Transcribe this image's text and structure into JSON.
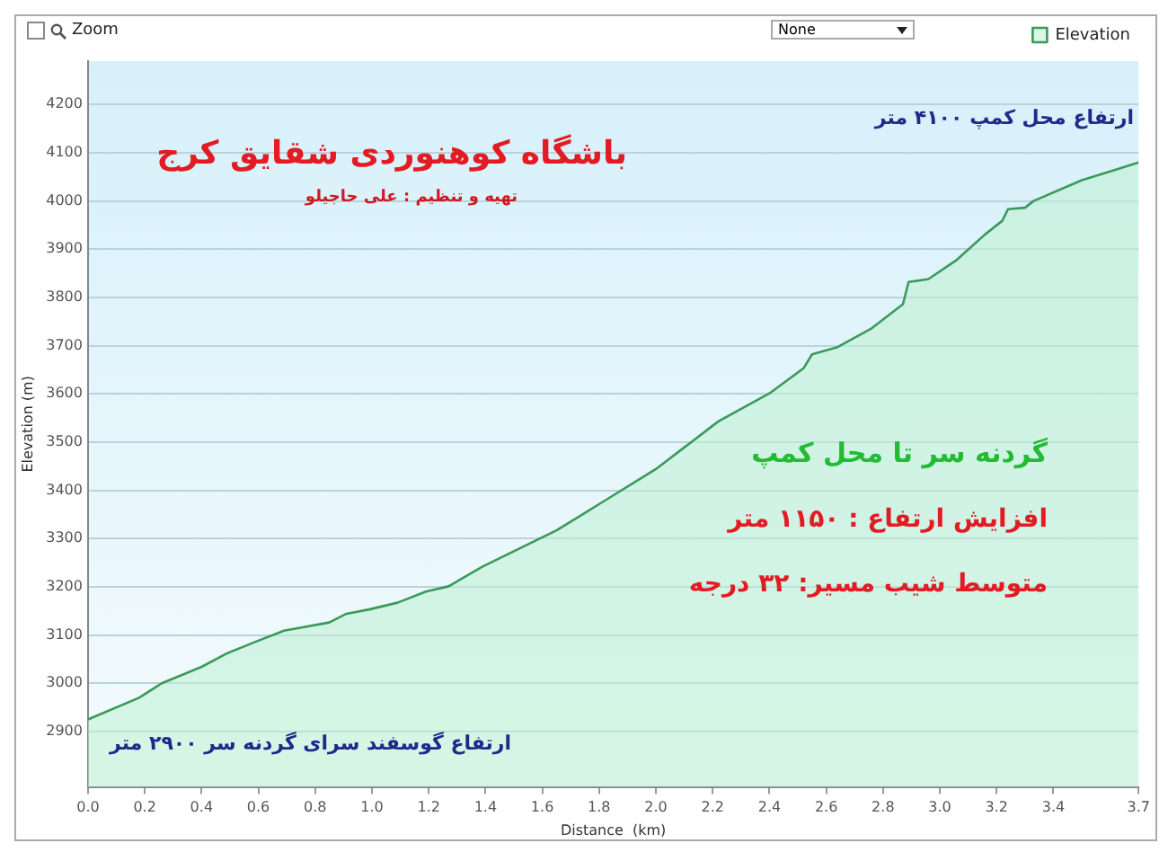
{
  "chart_data": {
    "type": "area",
    "title": "باشگاه کوهنوردی شقایق کرج",
    "subtitle": "تهیه و تنظیم : علی حاجیلو",
    "xlabel": "Distance  (km)",
    "ylabel": "Elevation (m)",
    "annotations": [
      "Zoom",
      "None",
      "ارتفاع محل کمپ ۴۱۰۰ متر",
      "گردنه سر تا محل کمپ",
      "افزایش ارتفاع :  ۱۱۵۰ متر",
      "متوسط شیب مسیر:  ۳۲ درجه",
      "ارتفاع گوسفند سرای گردنه سر ۲۹۰۰ متر"
    ],
    "x": [
      0,
      0.18,
      0.26,
      0.4,
      0.49,
      0.59,
      0.69,
      0.85,
      0.91,
      0.99,
      1.09,
      1.19,
      1.27,
      1.39,
      1.49,
      1.65,
      1.73,
      1.81,
      2.0,
      2.22,
      2.4,
      2.52,
      2.55,
      2.64,
      2.76,
      2.87,
      2.89,
      2.96,
      3.06,
      3.16,
      3.22,
      3.24,
      3.3,
      3.33,
      3.5,
      3.62,
      3.7
    ],
    "series": [
      {
        "name": "Elevation",
        "color": "#3a9a5a",
        "values": [
          2925,
          2970,
          3000,
          3034,
          3062,
          3086,
          3109,
          3126,
          3144,
          3153,
          3167,
          3190,
          3201,
          3242,
          3271,
          3317,
          3346,
          3375,
          3444,
          3543,
          3601,
          3653,
          3682,
          3697,
          3736,
          3786,
          3832,
          3838,
          3878,
          3931,
          3959,
          3983,
          3986,
          4000,
          4043,
          4065,
          4080
        ]
      }
    ],
    "xlim": [
      0,
      3.7
    ],
    "xticks": [
      {
        "value": 0,
        "label": "0.0"
      },
      0.2,
      0.4,
      0.6,
      0.8,
      {
        "value": 1,
        "label": "1.0"
      },
      1.2,
      1.4,
      1.6,
      1.8,
      {
        "value": 2,
        "label": "2.0"
      },
      2.2,
      2.4,
      2.6,
      2.8,
      {
        "value": 3,
        "label": "3.0"
      },
      3.2,
      3.4,
      3.7
    ],
    "ylim": [
      2785,
      4290
    ],
    "yticks": [
      2900,
      3000,
      3100,
      3200,
      3300,
      3400,
      3500,
      3600,
      3700,
      3800,
      3900,
      4000,
      4100,
      4200
    ],
    "grid": "y",
    "legend": "top right"
  }
}
